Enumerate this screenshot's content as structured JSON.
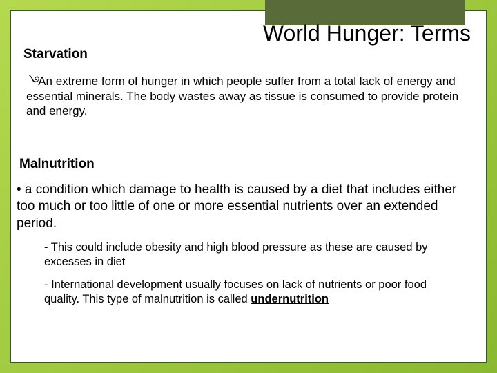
{
  "colors": {
    "background_gradient_start": "#b5d84f",
    "background_gradient_mid": "#9fc93f",
    "background_gradient_end": "#8ab830",
    "frame_border": "#3a5a1a",
    "content_bg": "#ffffff",
    "accent_box": "#5a6b3a",
    "text": "#000000"
  },
  "typography": {
    "title_fontsize": 32,
    "term_fontsize": 19,
    "body_fontsize": 17,
    "def2_fontsize": 19,
    "sub_fontsize": 16.5,
    "font_family": "Verdana"
  },
  "title": "World Hunger: Terms",
  "term1": {
    "heading": "Starvation",
    "bullet_glyph": "࿓",
    "definition": "An extreme form of hunger in which people suffer from a total lack of energy and essential minerals. The body wastes away as tissue is consumed to provide protein and energy."
  },
  "term2": {
    "heading": "Malnutrition",
    "definition": "•  a condition which damage to health is caused by a diet that includes either too much or too little of one or more essential nutrients over an extended period.",
    "sub1": "-  This could include obesity and high blood pressure as these are caused by excesses in diet",
    "sub2_prefix": "-  International development usually focuses on lack of nutrients or poor food quality. This type of malnutrition is called ",
    "sub2_underlined": "undernutrition"
  }
}
